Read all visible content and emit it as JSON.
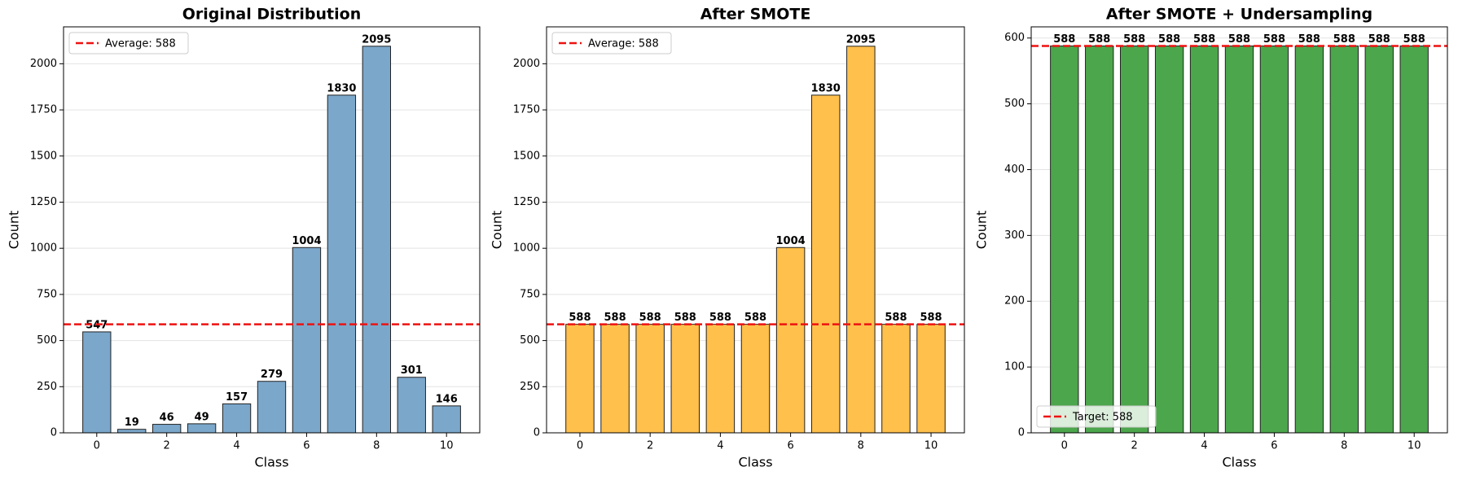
{
  "chart_data": [
    {
      "type": "bar",
      "title": "Original Distribution",
      "xlabel": "Class",
      "ylabel": "Count",
      "x": [
        0,
        1,
        2,
        3,
        4,
        5,
        6,
        7,
        8,
        9,
        10
      ],
      "values": [
        547,
        19,
        46,
        49,
        157,
        279,
        1004,
        1830,
        2095,
        301,
        146
      ],
      "color": "#7ba7cb",
      "edgecolor": "#222222",
      "xlim": [
        -0.95,
        10.95
      ],
      "xticks": [
        0,
        2,
        4,
        6,
        8,
        10
      ],
      "ylim": [
        0,
        2200
      ],
      "yticks": [
        0,
        250,
        500,
        750,
        1000,
        1250,
        1500,
        1750,
        2000
      ],
      "grid": true,
      "reference_line": {
        "value": 588,
        "label": "Average: 588",
        "color": "#ee1111"
      },
      "legend_loc": "upper left"
    },
    {
      "type": "bar",
      "title": "After SMOTE",
      "xlabel": "Class",
      "ylabel": "Count",
      "x": [
        0,
        1,
        2,
        3,
        4,
        5,
        6,
        7,
        8,
        9,
        10
      ],
      "values": [
        588,
        588,
        588,
        588,
        588,
        588,
        1004,
        1830,
        2095,
        588,
        588
      ],
      "color": "#ffc04c",
      "edgecolor": "#222222",
      "xlim": [
        -0.95,
        10.95
      ],
      "xticks": [
        0,
        2,
        4,
        6,
        8,
        10
      ],
      "ylim": [
        0,
        2200
      ],
      "yticks": [
        0,
        250,
        500,
        750,
        1000,
        1250,
        1500,
        1750,
        2000
      ],
      "grid": true,
      "reference_line": {
        "value": 588,
        "label": "Average: 588",
        "color": "#ee1111"
      },
      "legend_loc": "upper left"
    },
    {
      "type": "bar",
      "title": "After SMOTE + Undersampling",
      "xlabel": "Class",
      "ylabel": "Count",
      "x": [
        0,
        1,
        2,
        3,
        4,
        5,
        6,
        7,
        8,
        9,
        10
      ],
      "values": [
        588,
        588,
        588,
        588,
        588,
        588,
        588,
        588,
        588,
        588,
        588
      ],
      "color": "#4ca64c",
      "edgecolor": "#222222",
      "xlim": [
        -0.95,
        10.95
      ],
      "xticks": [
        0,
        2,
        4,
        6,
        8,
        10
      ],
      "ylim": [
        0,
        617
      ],
      "yticks": [
        0,
        100,
        200,
        300,
        400,
        500,
        600
      ],
      "grid": true,
      "reference_line": {
        "value": 588,
        "label": "Target: 588",
        "color": "#ee1111"
      },
      "legend_loc": "lower left"
    }
  ]
}
